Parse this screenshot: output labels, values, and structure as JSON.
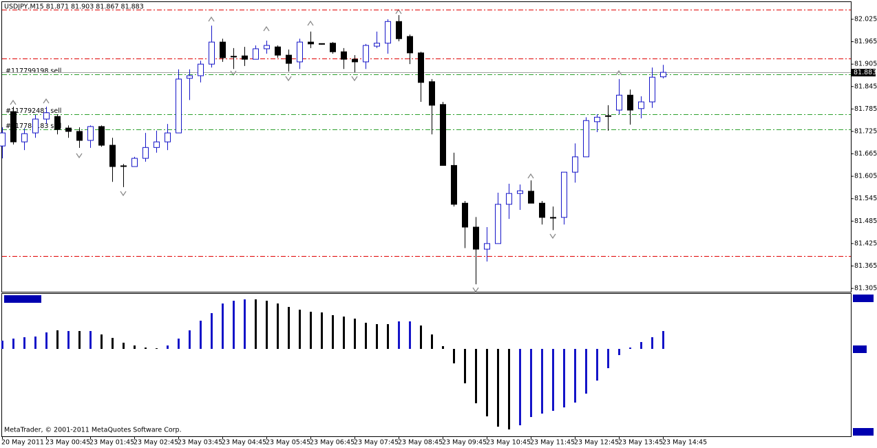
{
  "chart_data": [
    {
      "type": "candlestick",
      "title": "USDJPY,M15  81.871 81.903 81.867 81.883",
      "categories": [
        "20 May 2011",
        null,
        null,
        null,
        "23 May 00:45",
        null,
        null,
        null,
        "23 May 01:45",
        null,
        null,
        null,
        "23 May 02:45",
        null,
        null,
        null,
        "23 May 03:45",
        null,
        null,
        null,
        "23 May 04:45",
        null,
        null,
        null,
        "23 May 05:45",
        null,
        null,
        null,
        "23 May 06:45",
        null,
        null,
        null,
        "23 May 07:45",
        null,
        null,
        null,
        "23 May 08:45",
        null,
        null,
        null,
        "23 May 09:45",
        null,
        null,
        null,
        "23 May 10:45",
        null,
        null,
        null,
        "23 May 11:45",
        null,
        null,
        null,
        "23 May 12:45",
        null,
        null,
        null,
        "23 May 13:45",
        null,
        null,
        null,
        "23 May 14:45"
      ],
      "open": [
        81.686,
        81.778,
        81.697,
        81.721,
        81.758,
        81.765,
        81.734,
        81.725,
        81.701,
        81.738,
        81.688,
        81.633,
        81.631,
        81.653,
        81.682,
        81.697,
        81.721,
        81.867,
        81.874,
        81.905,
        81.964,
        81.926,
        81.927,
        81.918,
        81.946,
        81.951,
        81.929,
        81.911,
        81.964,
        81.96,
        81.961,
        81.938,
        81.918,
        81.911,
        81.953,
        81.961,
        82.019,
        81.979,
        81.935,
        81.858,
        81.797,
        81.634,
        81.533,
        81.469,
        81.41,
        81.425,
        81.53,
        81.559,
        81.565,
        81.533,
        81.495,
        81.495,
        81.616,
        81.657,
        81.751,
        81.767,
        81.782,
        81.822,
        81.786,
        81.804,
        81.871
      ],
      "high": [
        81.736,
        81.791,
        81.734,
        81.769,
        81.791,
        81.771,
        81.741,
        81.736,
        81.741,
        81.741,
        81.708,
        81.638,
        81.657,
        81.721,
        81.727,
        81.745,
        81.891,
        81.891,
        81.914,
        82.008,
        81.973,
        81.948,
        81.951,
        81.955,
        81.968,
        81.955,
        81.944,
        81.973,
        81.992,
        81.96,
        81.964,
        81.948,
        81.929,
        81.959,
        81.992,
        82.025,
        82.036,
        81.984,
        81.938,
        81.865,
        81.804,
        81.668,
        81.539,
        81.496,
        81.469,
        81.561,
        81.585,
        81.583,
        81.594,
        81.539,
        81.524,
        81.616,
        81.693,
        81.763,
        81.771,
        81.795,
        81.865,
        81.837,
        81.819,
        81.896,
        81.903
      ],
      "low": [
        81.653,
        81.69,
        81.675,
        81.708,
        81.745,
        81.717,
        81.708,
        81.681,
        81.681,
        81.684,
        81.59,
        81.576,
        81.631,
        81.644,
        81.668,
        81.675,
        81.721,
        81.809,
        81.856,
        81.896,
        81.911,
        81.892,
        81.9,
        81.918,
        81.933,
        81.922,
        81.885,
        81.892,
        81.948,
        81.957,
        81.933,
        81.892,
        81.883,
        81.892,
        81.948,
        81.933,
        81.966,
        81.905,
        81.804,
        81.717,
        81.634,
        81.524,
        81.413,
        81.316,
        81.377,
        81.425,
        81.491,
        81.515,
        81.533,
        81.476,
        81.461,
        81.476,
        81.588,
        81.657,
        81.723,
        81.727,
        81.771,
        81.743,
        81.76,
        81.788,
        81.867
      ],
      "close": [
        81.721,
        81.697,
        81.719,
        81.758,
        81.775,
        81.73,
        81.725,
        81.701,
        81.738,
        81.688,
        81.631,
        81.632,
        81.653,
        81.682,
        81.697,
        81.721,
        81.865,
        81.874,
        81.905,
        81.964,
        81.922,
        81.924,
        81.918,
        81.946,
        81.955,
        81.929,
        81.907,
        81.964,
        81.959,
        81.958,
        81.938,
        81.918,
        81.911,
        81.955,
        81.961,
        82.019,
        81.973,
        81.935,
        81.856,
        81.795,
        81.634,
        81.53,
        81.469,
        81.41,
        81.425,
        81.53,
        81.559,
        81.566,
        81.533,
        81.495,
        81.493,
        81.616,
        81.657,
        81.754,
        81.763,
        81.765,
        81.822,
        81.782,
        81.804,
        81.87,
        81.883
      ],
      "up_color": "#1414c8",
      "down_color": "#000000",
      "ylim": [
        81.296,
        82.071
      ],
      "yticks": [
        82.025,
        81.965,
        81.905,
        81.845,
        81.785,
        81.725,
        81.665,
        81.605,
        81.545,
        81.485,
        81.425,
        81.365,
        81.305
      ],
      "levels": [
        {
          "value": 82.051,
          "color": "#e00000"
        },
        {
          "value": 81.92,
          "color": "#e00000"
        },
        {
          "value": 81.391,
          "color": "#e00000"
        }
      ],
      "orders": [
        {
          "label": "#117799198 sell",
          "value": 81.878,
          "color": "#2ca02c"
        },
        {
          "label": "#117792481 sell",
          "value": 81.771,
          "color": "#2ca02c"
        },
        {
          "label": "#117788183 sell",
          "value": 81.73,
          "color": "#2ca02c"
        }
      ],
      "bid_line_color": "#a0a0a0"
    },
    {
      "type": "bar",
      "values": [
        0.012,
        0.015,
        0.017,
        0.018,
        0.024,
        0.027,
        0.026,
        0.026,
        0.026,
        0.021,
        0.016,
        0.009,
        0.005,
        0.002,
        0.001,
        0.005,
        0.015,
        0.027,
        0.041,
        0.052,
        0.066,
        0.07,
        0.072,
        0.072,
        0.07,
        0.066,
        0.061,
        0.057,
        0.054,
        0.053,
        0.049,
        0.047,
        0.044,
        0.038,
        0.036,
        0.036,
        0.04,
        0.04,
        0.034,
        0.021,
        0.004,
        -0.021,
        -0.05,
        -0.079,
        -0.098,
        -0.113,
        -0.117,
        -0.111,
        -0.099,
        -0.094,
        -0.09,
        -0.085,
        -0.078,
        -0.065,
        -0.046,
        -0.028,
        -0.009,
        0.002,
        0.01,
        0.017,
        0.026
      ],
      "colors": [
        "#1414c8",
        "#1414c8",
        "#1414c8",
        "#1414c8",
        "#1414c8",
        "#000000",
        "#1414c8",
        "#000000",
        "#1414c8",
        "#000000",
        "#000000",
        "#000000",
        "#000000",
        "#000000",
        "#000000",
        "#1414c8",
        "#1414c8",
        "#1414c8",
        "#1414c8",
        "#1414c8",
        "#1414c8",
        "#1414c8",
        "#1414c8",
        "#000000",
        "#000000",
        "#000000",
        "#000000",
        "#000000",
        "#000000",
        "#000000",
        "#000000",
        "#000000",
        "#000000",
        "#000000",
        "#000000",
        "#000000",
        "#1414c8",
        "#1414c8",
        "#000000",
        "#000000",
        "#000000",
        "#000000",
        "#000000",
        "#000000",
        "#000000",
        "#000000",
        "#000000",
        "#1414c8",
        "#1414c8",
        "#1414c8",
        "#1414c8",
        "#1414c8",
        "#1414c8",
        "#1414c8",
        "#1414c8",
        "#1414c8",
        "#1414c8",
        "#1414c8",
        "#1414c8",
        "#1414c8",
        "#1414c8"
      ],
      "ylim": [
        -0.126,
        0.08
      ]
    }
  ],
  "footer": "MetaTrader, © 2001-2011 MetaQuotes Software Corp."
}
